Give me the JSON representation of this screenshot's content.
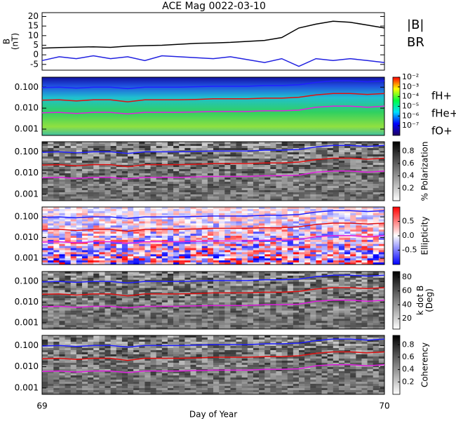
{
  "chart_data": [
    {
      "type": "line",
      "title": "ACE Mag 0022-03-10",
      "ylabel": [
        "B",
        "(nT)"
      ],
      "x": [
        69,
        69.05,
        69.1,
        69.15,
        69.2,
        69.25,
        69.3,
        69.35,
        69.4,
        69.45,
        69.5,
        69.55,
        69.6,
        69.65,
        69.7,
        69.75,
        69.8,
        69.85,
        69.9,
        69.95,
        70
      ],
      "xlim": [
        69,
        70
      ],
      "ylim": [
        -8,
        22
      ],
      "yticks": [
        -5,
        0,
        5,
        10,
        15,
        20
      ],
      "series": [
        {
          "name": "|B|",
          "color": "#000000",
          "values": [
            3.5,
            3.8,
            4,
            4.2,
            3.9,
            4.5,
            4.8,
            5,
            5.5,
            6,
            6.2,
            6.5,
            7,
            7.5,
            9,
            14,
            16,
            17.5,
            17,
            15.5,
            14
          ]
        },
        {
          "name": "BR",
          "color": "#2020e0",
          "values": [
            -3,
            -1,
            -2,
            -0.5,
            -2,
            -1,
            -3,
            -0.5,
            -1,
            -1.5,
            -2,
            -1,
            -2.5,
            -4,
            -2,
            -6,
            -2,
            -3,
            -2,
            -3,
            -4
          ]
        }
      ]
    },
    {
      "type": "spectrogram",
      "colormap": "rainbow",
      "ylog": true,
      "zlog": true,
      "x": [
        69,
        69.05,
        69.1,
        69.15,
        69.2,
        69.25,
        69.3,
        69.35,
        69.4,
        69.45,
        69.5,
        69.55,
        69.6,
        69.65,
        69.7,
        69.75,
        69.8,
        69.85,
        69.9,
        69.95,
        70
      ],
      "xlim": [
        69,
        70
      ],
      "ylim": [
        0.0005,
        0.3
      ],
      "yticks": [
        {
          "value": 0.001,
          "label": "0.001"
        },
        {
          "value": 0.01,
          "label": "0.010"
        },
        {
          "value": 0.1,
          "label": "0.100"
        }
      ],
      "zlim": [
        1e-08,
        0.01
      ],
      "zticks": [
        {
          "value": 0.01,
          "label": "10⁻²"
        },
        {
          "value": 0.001,
          "label": "10⁻³"
        },
        {
          "value": 0.0001,
          "label": "10⁻⁴"
        },
        {
          "value": 1e-05,
          "label": "10⁻⁵"
        },
        {
          "value": 1e-06,
          "label": "10⁻⁶"
        },
        {
          "value": 1e-07,
          "label": "10⁻⁷"
        }
      ],
      "series": [
        {
          "name": "fH+",
          "color": "#2020ff",
          "values": [
            0.095,
            0.1,
            0.09,
            0.1,
            0.1,
            0.085,
            0.1,
            0.1,
            0.1,
            0.105,
            0.11,
            0.11,
            0.11,
            0.12,
            0.12,
            0.13,
            0.17,
            0.2,
            0.2,
            0.18,
            0.2
          ]
        },
        {
          "name": "fHe+",
          "color": "#e01010",
          "values": [
            0.024,
            0.025,
            0.022,
            0.025,
            0.025,
            0.02,
            0.025,
            0.025,
            0.025,
            0.026,
            0.028,
            0.028,
            0.028,
            0.03,
            0.03,
            0.033,
            0.043,
            0.05,
            0.05,
            0.045,
            0.05
          ]
        },
        {
          "name": "fO+",
          "color": "#e020e0",
          "values": [
            0.006,
            0.0063,
            0.0056,
            0.0063,
            0.0063,
            0.0053,
            0.0063,
            0.0063,
            0.0063,
            0.0066,
            0.0069,
            0.0069,
            0.0069,
            0.0075,
            0.0075,
            0.008,
            0.011,
            0.0125,
            0.0125,
            0.011,
            0.0125
          ]
        }
      ]
    },
    {
      "type": "spectrogram",
      "colormap": "gray",
      "ylog": true,
      "zlabel": [
        "% Polarization"
      ],
      "x": [
        69,
        69.05,
        69.1,
        69.15,
        69.2,
        69.25,
        69.3,
        69.35,
        69.4,
        69.45,
        69.5,
        69.55,
        69.6,
        69.65,
        69.7,
        69.75,
        69.8,
        69.85,
        69.9,
        69.95,
        70
      ],
      "xlim": [
        69,
        70
      ],
      "ylim": [
        0.0005,
        0.3
      ],
      "yticks": [
        {
          "value": 0.001,
          "label": "0.001"
        },
        {
          "value": 0.01,
          "label": "0.010"
        },
        {
          "value": 0.1,
          "label": "0.100"
        }
      ],
      "zlim": [
        0,
        0.95
      ],
      "zticks": [
        0.2,
        0.4,
        0.6,
        0.8
      ],
      "series": [
        {
          "color": "#2020ff",
          "values": [
            0.095,
            0.1,
            0.09,
            0.1,
            0.1,
            0.085,
            0.1,
            0.1,
            0.1,
            0.105,
            0.11,
            0.11,
            0.11,
            0.12,
            0.12,
            0.13,
            0.17,
            0.2,
            0.2,
            0.18,
            0.2
          ]
        },
        {
          "color": "#e01010",
          "values": [
            0.024,
            0.025,
            0.022,
            0.025,
            0.025,
            0.02,
            0.025,
            0.025,
            0.025,
            0.026,
            0.028,
            0.028,
            0.028,
            0.03,
            0.03,
            0.033,
            0.043,
            0.05,
            0.05,
            0.045,
            0.05
          ]
        },
        {
          "color": "#e020e0",
          "values": [
            0.006,
            0.0063,
            0.0056,
            0.0063,
            0.0063,
            0.0053,
            0.0063,
            0.0063,
            0.0063,
            0.0066,
            0.0069,
            0.0069,
            0.0069,
            0.0075,
            0.0075,
            0.008,
            0.011,
            0.0125,
            0.0125,
            0.011,
            0.0125
          ]
        }
      ]
    },
    {
      "type": "spectrogram",
      "colormap": "bwr",
      "ylog": true,
      "zlabel": [
        "Ellipticity"
      ],
      "x": [
        69,
        69.05,
        69.1,
        69.15,
        69.2,
        69.25,
        69.3,
        69.35,
        69.4,
        69.45,
        69.5,
        69.55,
        69.6,
        69.65,
        69.7,
        69.75,
        69.8,
        69.85,
        69.9,
        69.95,
        70
      ],
      "xlim": [
        69,
        70
      ],
      "ylim": [
        0.0005,
        0.3
      ],
      "yticks": [
        {
          "value": 0.001,
          "label": "0.001"
        },
        {
          "value": 0.01,
          "label": "0.010"
        },
        {
          "value": 0.1,
          "label": "0.100"
        }
      ],
      "zlim": [
        -1,
        1
      ],
      "zticks": [
        -0.5,
        {
          "value": 0,
          "label": "0.0"
        },
        0.5
      ],
      "series": [
        {
          "color": "#2020ff",
          "values": [
            0.095,
            0.1,
            0.09,
            0.1,
            0.1,
            0.085,
            0.1,
            0.1,
            0.1,
            0.105,
            0.11,
            0.11,
            0.11,
            0.12,
            0.12,
            0.13,
            0.17,
            0.2,
            0.2,
            0.18,
            0.2
          ]
        },
        {
          "color": "#e01010",
          "values": [
            0.024,
            0.025,
            0.022,
            0.025,
            0.025,
            0.02,
            0.025,
            0.025,
            0.025,
            0.026,
            0.028,
            0.028,
            0.028,
            0.03,
            0.03,
            0.033,
            0.043,
            0.05,
            0.05,
            0.045,
            0.05
          ]
        },
        {
          "color": "#e020e0",
          "values": [
            0.006,
            0.0063,
            0.0056,
            0.0063,
            0.0063,
            0.0053,
            0.0063,
            0.0063,
            0.0063,
            0.0066,
            0.0069,
            0.0069,
            0.0069,
            0.0075,
            0.0075,
            0.008,
            0.011,
            0.0125,
            0.0125,
            0.011,
            0.0125
          ]
        }
      ]
    },
    {
      "type": "spectrogram",
      "colormap": "gray",
      "ylog": true,
      "zlabel": [
        "k dot B",
        "(Deg)"
      ],
      "x": [
        69,
        69.05,
        69.1,
        69.15,
        69.2,
        69.25,
        69.3,
        69.35,
        69.4,
        69.45,
        69.5,
        69.55,
        69.6,
        69.65,
        69.7,
        69.75,
        69.8,
        69.85,
        69.9,
        69.95,
        70
      ],
      "xlim": [
        69,
        70
      ],
      "ylim": [
        0.0005,
        0.3
      ],
      "yticks": [
        {
          "value": 0.001,
          "label": "0.001"
        },
        {
          "value": 0.01,
          "label": "0.010"
        },
        {
          "value": 0.1,
          "label": "0.100"
        }
      ],
      "zlim": [
        5,
        88
      ],
      "zticks": [
        20,
        40,
        60,
        80
      ],
      "series": [
        {
          "color": "#2020ff",
          "values": [
            0.095,
            0.1,
            0.09,
            0.1,
            0.1,
            0.085,
            0.1,
            0.1,
            0.1,
            0.105,
            0.11,
            0.11,
            0.11,
            0.12,
            0.12,
            0.13,
            0.17,
            0.2,
            0.2,
            0.18,
            0.2
          ]
        },
        {
          "color": "#e01010",
          "values": [
            0.024,
            0.025,
            0.022,
            0.025,
            0.025,
            0.02,
            0.025,
            0.025,
            0.025,
            0.026,
            0.028,
            0.028,
            0.028,
            0.03,
            0.03,
            0.033,
            0.043,
            0.05,
            0.05,
            0.045,
            0.05
          ]
        },
        {
          "color": "#e020e0",
          "values": [
            0.006,
            0.0063,
            0.0056,
            0.0063,
            0.0063,
            0.0053,
            0.0063,
            0.0063,
            0.0063,
            0.0066,
            0.0069,
            0.0069,
            0.0069,
            0.0075,
            0.0075,
            0.008,
            0.011,
            0.0125,
            0.0125,
            0.011,
            0.0125
          ]
        }
      ]
    },
    {
      "type": "spectrogram",
      "colormap": "gray",
      "ylog": true,
      "zlabel": [
        "Coherency"
      ],
      "xlabel": "Day of Year",
      "x": [
        69,
        69.05,
        69.1,
        69.15,
        69.2,
        69.25,
        69.3,
        69.35,
        69.4,
        69.45,
        69.5,
        69.55,
        69.6,
        69.65,
        69.7,
        69.75,
        69.8,
        69.85,
        69.9,
        69.95,
        70
      ],
      "xlim": [
        69,
        70
      ],
      "xticks": [
        69,
        70
      ],
      "ylim": [
        0.0005,
        0.3
      ],
      "yticks": [
        {
          "value": 0.001,
          "label": "0.001"
        },
        {
          "value": 0.01,
          "label": "0.010"
        },
        {
          "value": 0.1,
          "label": "0.100"
        }
      ],
      "zlim": [
        0,
        0.95
      ],
      "zticks": [
        0.2,
        0.4,
        0.6,
        0.8
      ],
      "series": [
        {
          "color": "#2020ff",
          "values": [
            0.095,
            0.1,
            0.09,
            0.1,
            0.1,
            0.085,
            0.1,
            0.1,
            0.1,
            0.105,
            0.11,
            0.11,
            0.11,
            0.12,
            0.12,
            0.13,
            0.17,
            0.2,
            0.2,
            0.18,
            0.2
          ]
        },
        {
          "color": "#e01010",
          "values": [
            0.024,
            0.025,
            0.022,
            0.025,
            0.025,
            0.02,
            0.025,
            0.025,
            0.025,
            0.026,
            0.028,
            0.028,
            0.028,
            0.03,
            0.03,
            0.033,
            0.043,
            0.05,
            0.05,
            0.045,
            0.05
          ]
        },
        {
          "color": "#e020e0",
          "values": [
            0.006,
            0.0063,
            0.0056,
            0.0063,
            0.0063,
            0.0053,
            0.0063,
            0.0063,
            0.0063,
            0.0066,
            0.0069,
            0.0069,
            0.0069,
            0.0075,
            0.0075,
            0.008,
            0.011,
            0.0125,
            0.0125,
            0.011,
            0.0125
          ]
        }
      ]
    }
  ]
}
